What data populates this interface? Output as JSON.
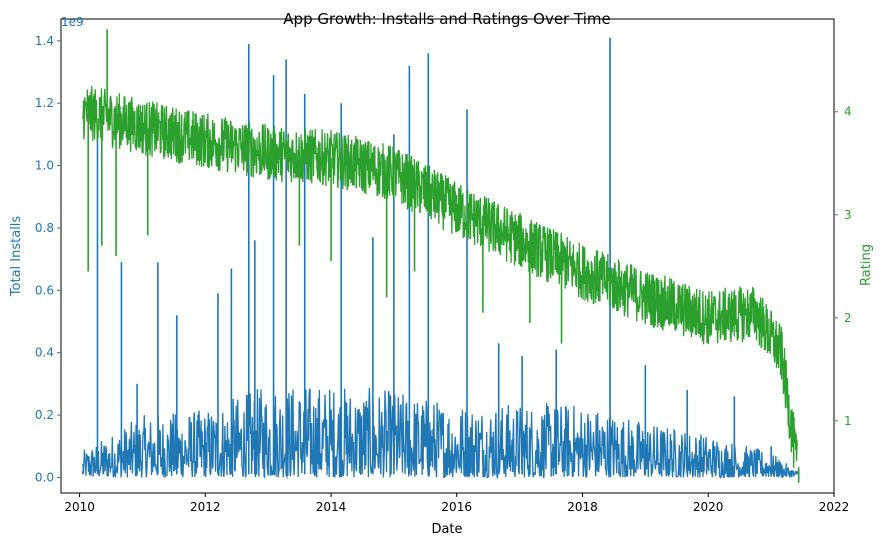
{
  "chart_data": {
    "type": "line",
    "title": "App Growth: Installs and Ratings Over Time",
    "xlabel": "Date",
    "x_ticks": [
      "2010",
      "2012",
      "2014",
      "2016",
      "2018",
      "2020",
      "2022"
    ],
    "x_range": [
      "2009-09-15",
      "2022-01-01"
    ],
    "grid": false,
    "y_left": {
      "label": "Total Installs",
      "offset_text": "1e9",
      "color": "#1f77b4",
      "ticks": [
        "0.0",
        "0.2",
        "0.4",
        "0.6",
        "0.8",
        "1.0",
        "1.2",
        "1.4"
      ],
      "range": [
        -0.05,
        1.47
      ]
    },
    "y_right": {
      "label": "Rating",
      "color": "#2ca02c",
      "ticks": [
        "1",
        "2",
        "3",
        "4"
      ],
      "range": [
        0.3,
        4.9
      ]
    },
    "series": [
      {
        "axis": "left",
        "color": "#1f77b4",
        "points": [
          [
            "2010-01-20",
            0.02
          ],
          [
            "2010-03-01",
            0.05
          ],
          [
            "2010-04-15",
            1.12
          ],
          [
            "2010-05-20",
            0.08
          ],
          [
            "2010-09-01",
            0.69
          ],
          [
            "2010-12-01",
            0.3
          ],
          [
            "2011-04-01",
            0.69
          ],
          [
            "2011-07-20",
            0.52
          ],
          [
            "2012-01-01",
            0.15
          ],
          [
            "2012-03-15",
            0.59
          ],
          [
            "2012-06-01",
            0.67
          ],
          [
            "2012-09-10",
            1.39
          ],
          [
            "2012-10-15",
            0.76
          ],
          [
            "2013-02-01",
            1.29
          ],
          [
            "2013-04-15",
            1.34
          ],
          [
            "2013-08-01",
            1.23
          ],
          [
            "2014-03-01",
            1.2
          ],
          [
            "2014-09-01",
            0.77
          ],
          [
            "2015-01-01",
            1.1
          ],
          [
            "2015-04-01",
            1.32
          ],
          [
            "2015-07-20",
            1.36
          ],
          [
            "2016-03-01",
            1.18
          ],
          [
            "2016-09-01",
            0.43
          ],
          [
            "2017-01-15",
            0.39
          ],
          [
            "2017-08-01",
            0.41
          ],
          [
            "2018-06-10",
            1.41
          ],
          [
            "2018-08-01",
            0.05
          ],
          [
            "2019-01-01",
            0.36
          ],
          [
            "2019-09-01",
            0.28
          ],
          [
            "2020-06-01",
            0.26
          ],
          [
            "2021-01-01",
            0.1
          ],
          [
            "2021-06-01",
            0.02
          ]
        ],
        "band_max": [
          [
            "2010-01",
            0.08
          ],
          [
            "2011-01",
            0.2
          ],
          [
            "2012-01",
            0.22
          ],
          [
            "2013-01",
            0.3
          ],
          [
            "2014-01",
            0.3
          ],
          [
            "2015-01",
            0.28
          ],
          [
            "2016-01",
            0.24
          ],
          [
            "2017-01",
            0.24
          ],
          [
            "2018-01",
            0.24
          ],
          [
            "2019-01",
            0.18
          ],
          [
            "2020-01",
            0.14
          ],
          [
            "2021-01",
            0.08
          ],
          [
            "2021-06",
            0.02
          ]
        ]
      },
      {
        "axis": "right",
        "color": "#2ca02c",
        "points": [
          [
            "2010-01-20",
            4.0
          ],
          [
            "2010-06-01",
            3.95
          ],
          [
            "2011-01-01",
            3.85
          ],
          [
            "2012-01-01",
            3.72
          ],
          [
            "2013-01-01",
            3.6
          ],
          [
            "2014-01-01",
            3.55
          ],
          [
            "2015-01-01",
            3.4
          ],
          [
            "2016-01-01",
            3.05
          ],
          [
            "2017-01-01",
            2.75
          ],
          [
            "2018-01-01",
            2.45
          ],
          [
            "2019-01-01",
            2.2
          ],
          [
            "2020-01-01",
            2.0
          ],
          [
            "2020-10-01",
            2.05
          ],
          [
            "2021-03-01",
            1.65
          ],
          [
            "2021-06-01",
            0.55
          ]
        ],
        "dips": [
          [
            "2010-02-20",
            2.45
          ],
          [
            "2010-05-10",
            2.7
          ],
          [
            "2010-08-01",
            2.6
          ],
          [
            "2011-02-01",
            2.8
          ],
          [
            "2013-07-01",
            2.7
          ],
          [
            "2014-01-01",
            2.55
          ],
          [
            "2014-11-20",
            2.2
          ],
          [
            "2015-05-01",
            2.45
          ],
          [
            "2016-06-01",
            2.05
          ],
          [
            "2017-03-01",
            1.95
          ],
          [
            "2017-09-01",
            1.75
          ],
          [
            "2021-06-10",
            0.4
          ]
        ],
        "peak": [
          "2010-06-10",
          4.8
        ]
      }
    ]
  }
}
